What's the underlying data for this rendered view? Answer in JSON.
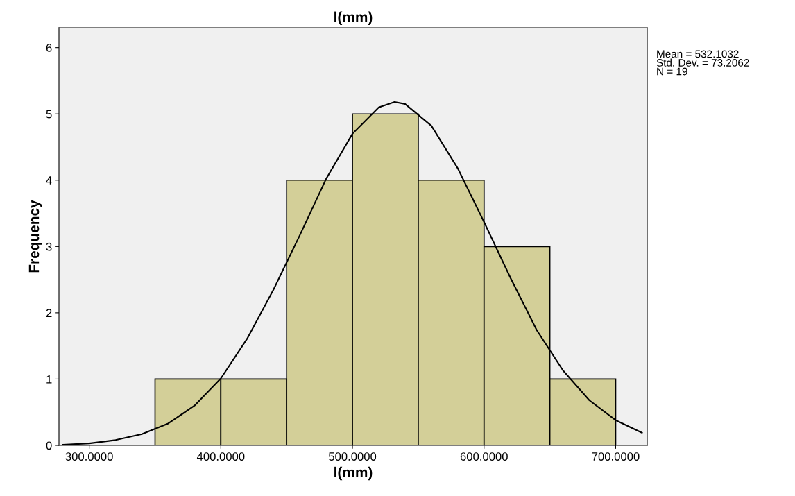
{
  "chart_data": {
    "type": "histogram",
    "title": "l(mm)",
    "xlabel": "l(mm)",
    "ylabel": "Frequency",
    "bins": [
      350,
      400,
      450,
      500,
      550,
      600,
      650,
      700
    ],
    "values": [
      1,
      1,
      4,
      5,
      4,
      3,
      1
    ],
    "color": "#d3cf98",
    "series": [
      {
        "type": "line",
        "color": "#000000",
        "x": [
          280,
          300,
          320,
          340,
          360,
          380,
          400,
          420,
          440,
          460,
          480,
          500,
          520,
          532,
          540,
          560,
          580,
          600,
          620,
          640,
          660,
          680,
          700,
          720
        ],
        "values": [
          0.01,
          0.03,
          0.08,
          0.17,
          0.33,
          0.6,
          1.01,
          1.61,
          2.35,
          3.17,
          4.02,
          4.7,
          5.1,
          5.18,
          5.15,
          4.82,
          4.18,
          3.37,
          2.53,
          1.74,
          1.13,
          0.68,
          0.38,
          0.19
        ]
      }
    ],
    "xlim": [
      277,
      724
    ],
    "xticks": [
      {
        "value": 300,
        "label": "300.0000"
      },
      {
        "value": 400,
        "label": "400.0000"
      },
      {
        "value": 500,
        "label": "500.0000"
      },
      {
        "value": 600,
        "label": "600.0000"
      },
      {
        "value": 700,
        "label": "700.0000"
      }
    ],
    "ylim": [
      0,
      6.3
    ],
    "yticks": [
      0,
      1,
      2,
      3,
      4,
      5,
      6
    ],
    "grid": false,
    "annotations": [
      "Mean = 532.1032\nStd. Dev. = 73.2062\nN = 19"
    ]
  }
}
